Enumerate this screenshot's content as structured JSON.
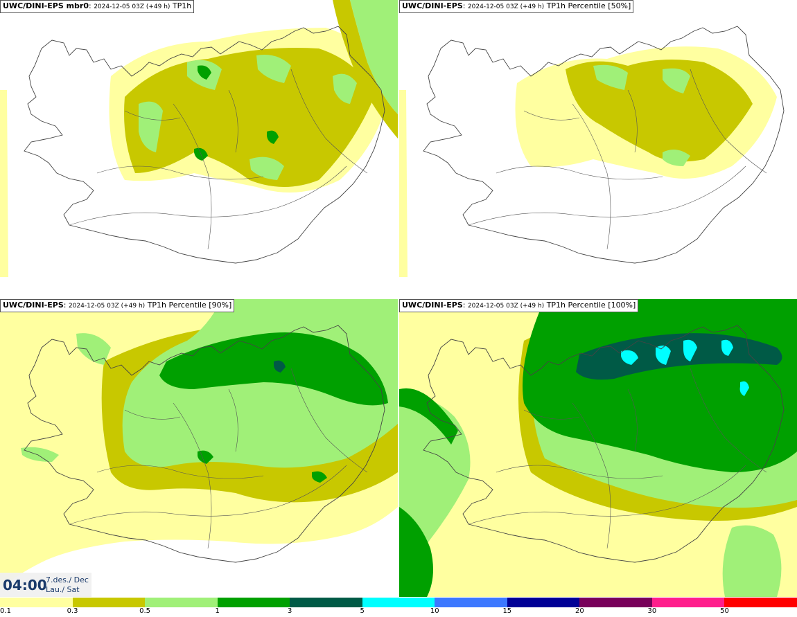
{
  "panels": [
    {
      "model": "UWC/DINI-EPS mbr0",
      "datetime": "2024-12-05 03Z (+49 h)",
      "field": "TP1h",
      "intensity": 1
    },
    {
      "model": "UWC/DINI-EPS",
      "datetime": "2024-12-05 03Z (+49 h)",
      "field": "TP1h Percentile [50%]",
      "intensity": 0
    },
    {
      "model": "UWC/DINI-EPS",
      "datetime": "2024-12-05 03Z (+49 h)",
      "field": "TP1h Percentile [90%]",
      "intensity": 2
    },
    {
      "model": "UWC/DINI-EPS",
      "datetime": "2024-12-05 03Z (+49 h)",
      "field": "TP1h Percentile [100%]",
      "intensity": 3
    }
  ],
  "time_display": {
    "time": "04:00",
    "date": "7.des./ Dec",
    "day": "Lau./ Sat"
  },
  "colorbar": {
    "colors": [
      "#ffffa0",
      "#c8c800",
      "#a0f078",
      "#00a000",
      "#005a46",
      "#00ffff",
      "#3c78ff",
      "#000096",
      "#78005a",
      "#ff1e8c",
      "#ff0000"
    ],
    "labels": [
      "0.1",
      "0.3",
      "0.5",
      "1",
      "3",
      "5",
      "10",
      "15",
      "20",
      "30",
      "50"
    ]
  },
  "map_colors": {
    "light_yellow": "#ffffa0",
    "olive": "#c8c800",
    "light_green": "#a0f078",
    "green": "#00a000",
    "dark_green": "#005a46",
    "cyan": "#00ffff",
    "coast": "#444444"
  }
}
